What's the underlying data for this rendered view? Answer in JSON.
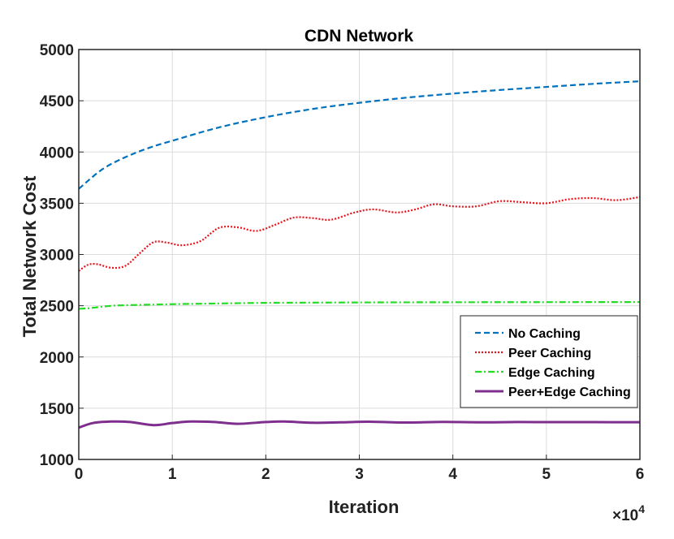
{
  "chart_data": {
    "type": "line",
    "title": "CDN Network",
    "xlabel": "Iteration",
    "ylabel": "Total Network Cost",
    "x_multiplier_base": "×10",
    "x_multiplier_exp": "4",
    "xlim": [
      0,
      6
    ],
    "ylim": [
      1000,
      5000
    ],
    "xticks": [
      0,
      1,
      2,
      3,
      4,
      5,
      6
    ],
    "yticks": [
      1000,
      1500,
      2000,
      2500,
      3000,
      3500,
      4000,
      4500,
      5000
    ],
    "grid": true,
    "legend_position": "lower-right",
    "series": [
      {
        "name": "No Caching",
        "color": "#0072BD",
        "style": "dashed",
        "x": [
          0,
          0.25,
          0.5,
          0.75,
          1,
          1.5,
          2,
          2.5,
          3,
          3.5,
          4,
          4.5,
          5,
          5.5,
          6
        ],
        "y": [
          3640,
          3830,
          3950,
          4040,
          4110,
          4240,
          4340,
          4420,
          4480,
          4530,
          4570,
          4605,
          4635,
          4665,
          4690
        ]
      },
      {
        "name": "Peer Caching",
        "color": "#E8141B",
        "style": "dotted",
        "x": [
          0,
          0.1,
          0.2,
          0.35,
          0.5,
          0.65,
          0.8,
          0.95,
          1.1,
          1.3,
          1.5,
          1.7,
          1.9,
          2.1,
          2.3,
          2.5,
          2.7,
          2.95,
          3.15,
          3.4,
          3.6,
          3.8,
          4.0,
          4.25,
          4.5,
          4.75,
          5.0,
          5.25,
          5.5,
          5.75,
          6.0
        ],
        "y": [
          2840,
          2900,
          2905,
          2870,
          2890,
          3010,
          3120,
          3115,
          3090,
          3130,
          3260,
          3265,
          3230,
          3290,
          3360,
          3355,
          3340,
          3410,
          3440,
          3410,
          3440,
          3490,
          3470,
          3470,
          3520,
          3510,
          3500,
          3540,
          3550,
          3530,
          3560
        ]
      },
      {
        "name": "Edge Caching",
        "color": "#22DD22",
        "style": "dashdot",
        "x": [
          0,
          0.1,
          0.2,
          0.35,
          0.5,
          0.75,
          1,
          1.5,
          2,
          3,
          4,
          5,
          6
        ],
        "y": [
          2470,
          2475,
          2485,
          2500,
          2505,
          2510,
          2515,
          2522,
          2528,
          2532,
          2534,
          2535,
          2536
        ]
      },
      {
        "name": "Peer+Edge Caching",
        "color": "#7E2F8E",
        "style": "solid",
        "x": [
          0,
          0.15,
          0.35,
          0.55,
          0.8,
          1.0,
          1.2,
          1.45,
          1.7,
          2.0,
          2.2,
          2.5,
          2.8,
          3.1,
          3.5,
          3.9,
          4.3,
          4.7,
          5.1,
          5.5,
          6.0
        ],
        "y": [
          1310,
          1355,
          1370,
          1365,
          1335,
          1355,
          1370,
          1365,
          1348,
          1365,
          1370,
          1358,
          1362,
          1368,
          1360,
          1366,
          1362,
          1365,
          1364,
          1364,
          1363
        ]
      }
    ]
  }
}
